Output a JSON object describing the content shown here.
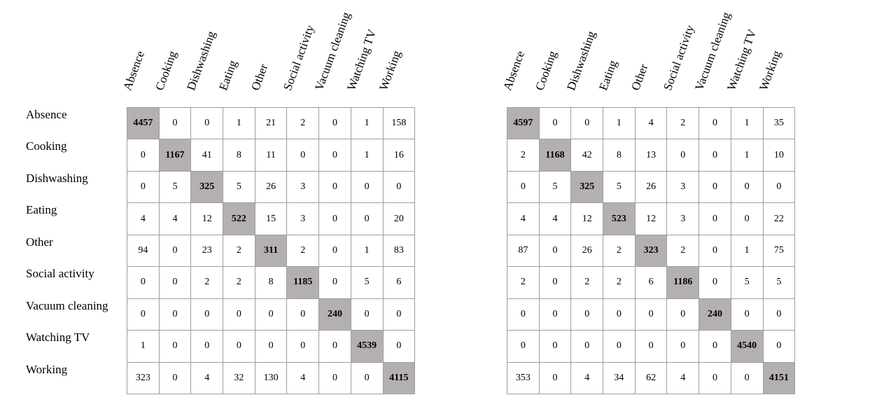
{
  "colors": {
    "background": "#ffffff",
    "grid_line": "#9d9d9d",
    "diagonal_bg": "#b4b0b0",
    "text": "#000000"
  },
  "categories": [
    "Absence",
    "Cooking",
    "Dishwashing",
    "Eating",
    "Other",
    "Social activity",
    "Vacuum cleaning",
    "Watching TV",
    "Working"
  ],
  "chart_data": [
    {
      "type": "heatmap",
      "name": "confusion-matrix-left",
      "row_labels": [
        "Absence",
        "Cooking",
        "Dishwashing",
        "Eating",
        "Other",
        "Social activity",
        "Vacuum cleaning",
        "Watching TV",
        "Working"
      ],
      "col_labels": [
        "Absence",
        "Cooking",
        "Dishwashing",
        "Eating",
        "Other",
        "Social activity",
        "Vacuum cleaning",
        "Watching TV",
        "Working"
      ],
      "values": [
        [
          4457,
          0,
          0,
          1,
          21,
          2,
          0,
          1,
          158
        ],
        [
          0,
          1167,
          41,
          8,
          11,
          0,
          0,
          1,
          16
        ],
        [
          0,
          5,
          325,
          5,
          26,
          3,
          0,
          0,
          0
        ],
        [
          4,
          4,
          12,
          522,
          15,
          3,
          0,
          0,
          20
        ],
        [
          94,
          0,
          23,
          2,
          311,
          2,
          0,
          1,
          83
        ],
        [
          0,
          0,
          2,
          2,
          8,
          1185,
          0,
          5,
          6
        ],
        [
          0,
          0,
          0,
          0,
          0,
          0,
          240,
          0,
          0
        ],
        [
          1,
          0,
          0,
          0,
          0,
          0,
          0,
          4539,
          0
        ],
        [
          323,
          0,
          4,
          32,
          130,
          4,
          0,
          0,
          4115
        ]
      ],
      "diagonal_highlighted": true
    },
    {
      "type": "heatmap",
      "name": "confusion-matrix-right",
      "row_labels": [
        "Absence",
        "Cooking",
        "Dishwashing",
        "Eating",
        "Other",
        "Social activity",
        "Vacuum cleaning",
        "Watching TV",
        "Working"
      ],
      "col_labels": [
        "Absence",
        "Cooking",
        "Dishwashing",
        "Eating",
        "Other",
        "Social activity",
        "Vacuum cleaning",
        "Watching TV",
        "Working"
      ],
      "values": [
        [
          4597,
          0,
          0,
          1,
          4,
          2,
          0,
          1,
          35
        ],
        [
          2,
          1168,
          42,
          8,
          13,
          0,
          0,
          1,
          10
        ],
        [
          0,
          5,
          325,
          5,
          26,
          3,
          0,
          0,
          0
        ],
        [
          4,
          4,
          12,
          523,
          12,
          3,
          0,
          0,
          22
        ],
        [
          87,
          0,
          26,
          2,
          323,
          2,
          0,
          1,
          75
        ],
        [
          2,
          0,
          2,
          2,
          6,
          1186,
          0,
          5,
          5
        ],
        [
          0,
          0,
          0,
          0,
          0,
          0,
          240,
          0,
          0
        ],
        [
          0,
          0,
          0,
          0,
          0,
          0,
          0,
          4540,
          0
        ],
        [
          353,
          0,
          4,
          34,
          62,
          4,
          0,
          0,
          4151
        ]
      ],
      "diagonal_highlighted": true
    }
  ]
}
